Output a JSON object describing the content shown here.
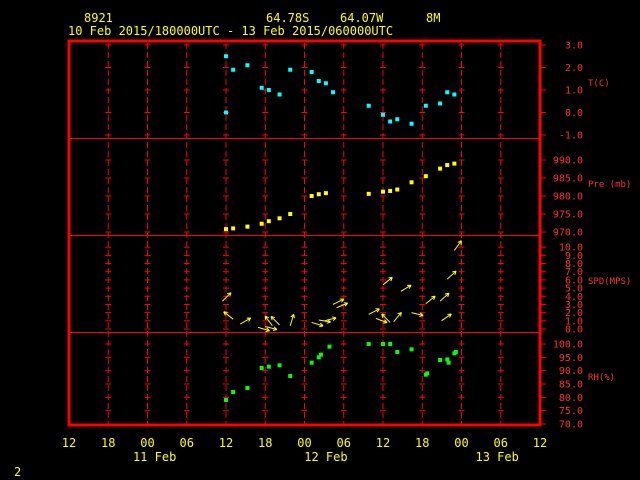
{
  "header": {
    "station": "8921",
    "lat": "64.78S",
    "lon": "64.07W",
    "elev": "8M",
    "period": "10 Feb 2015/180000UTC - 13 Feb 2015/060000UTC"
  },
  "page_number": "2",
  "colors": {
    "frame": "#ff0000",
    "text": "#ffff00",
    "temperature": "#00ffff",
    "pressure": "#ffff00",
    "wind": "#ffff00",
    "humidity": "#00ff00"
  },
  "chart_data": {
    "type": "scatter",
    "x_unit": "hours since 10 Feb 2015 12 UTC",
    "x_range": [
      0,
      66
    ],
    "x_ticks": [
      "12",
      "18",
      "00",
      "06",
      "12",
      "18",
      "00",
      "06",
      "12",
      "18",
      "00",
      "06",
      "12"
    ],
    "day_labels": [
      {
        "label": "11 Feb",
        "at_hour": 12
      },
      {
        "label": "12 Feb",
        "at_hour": 36
      },
      {
        "label": "13 Feb",
        "at_hour": 60
      }
    ],
    "panels": [
      {
        "name": "temperature",
        "label": "T(C)",
        "ylim": [
          -1.0,
          3.0
        ],
        "ticks": [
          "-1.0",
          "0.0",
          "1.0",
          "2.0",
          "3.0"
        ],
        "tick_values": [
          -1,
          0,
          1,
          2,
          3
        ],
        "points": [
          [
            22,
            2.5
          ],
          [
            22,
            0
          ],
          [
            23,
            1.9
          ],
          [
            25,
            2.1
          ],
          [
            27,
            1.1
          ],
          [
            28,
            1.0
          ],
          [
            29.5,
            0.8
          ],
          [
            31,
            1.9
          ],
          [
            34,
            1.8
          ],
          [
            35,
            1.4
          ],
          [
            36,
            1.3
          ],
          [
            37,
            0.9
          ],
          [
            42,
            0.3
          ],
          [
            44,
            -0.1
          ],
          [
            45,
            -0.4
          ],
          [
            46,
            -0.3
          ],
          [
            48,
            -0.5
          ],
          [
            50,
            0.3
          ],
          [
            52,
            0.4
          ],
          [
            53,
            0.9
          ],
          [
            54,
            0.8
          ]
        ]
      },
      {
        "name": "pressure",
        "label": "Pre (mb)",
        "ylim": [
          970.0,
          995.0
        ],
        "ticks": [
          "970.0",
          "975.0",
          "980.0",
          "985.0",
          "990.0"
        ],
        "tick_values": [
          970,
          975,
          980,
          985,
          990
        ],
        "points": [
          [
            22,
            970.8
          ],
          [
            23,
            971.0
          ],
          [
            25,
            971.5
          ],
          [
            27,
            972.3
          ],
          [
            28,
            973.0
          ],
          [
            29.5,
            973.8
          ],
          [
            31,
            975.0
          ],
          [
            34,
            980.0
          ],
          [
            35,
            980.5
          ],
          [
            36,
            980.8
          ],
          [
            42,
            980.6
          ],
          [
            44,
            981.2
          ],
          [
            45,
            981.4
          ],
          [
            46,
            981.8
          ],
          [
            48,
            983.8
          ],
          [
            50,
            985.5
          ],
          [
            52,
            987.6
          ],
          [
            53,
            988.6
          ],
          [
            54,
            989.0
          ]
        ]
      },
      {
        "name": "wind",
        "label": "SPD(MPS)",
        "ylim": [
          0.0,
          11.0
        ],
        "ticks": [
          "0.0",
          "1.0",
          "2.0",
          "3.0",
          "4.0",
          "5.0",
          "6.0",
          "7.0",
          "8.0",
          "9.0",
          "10.0"
        ],
        "tick_values": [
          0,
          1,
          2,
          3,
          4,
          5,
          6,
          7,
          8,
          9,
          10
        ],
        "arrows": [
          [
            21.5,
            3.4,
            1.2,
            1.2
          ],
          [
            23,
            1.2,
            -1.0,
            0.8
          ],
          [
            24,
            0.6,
            1.2,
            0.7
          ],
          [
            26.5,
            0.2,
            1.0,
            -0.3
          ],
          [
            27.5,
            0.3,
            0.8,
            -0.2
          ],
          [
            28.5,
            0.4,
            -0.6,
            0.8
          ],
          [
            29.5,
            0.5,
            -0.8,
            0.8
          ],
          [
            31,
            0.4,
            0.3,
            1.0
          ],
          [
            34,
            0.8,
            1.0,
            -0.3
          ],
          [
            35,
            1.1,
            1.2,
            -0.2
          ],
          [
            35.8,
            1.0,
            0.8,
            0.2
          ],
          [
            37,
            3.0,
            1.2,
            0.6
          ],
          [
            37.5,
            2.6,
            1.2,
            0.5
          ],
          [
            42,
            1.8,
            1.0,
            0.5
          ],
          [
            43,
            1.3,
            0.8,
            -0.3
          ],
          [
            44,
            5.4,
            1.0,
            0.8
          ],
          [
            45,
            0.8,
            -0.6,
            0.6
          ],
          [
            45.5,
            0.9,
            0.5,
            0.6
          ],
          [
            46.5,
            4.6,
            1.0,
            0.6
          ],
          [
            48,
            2.0,
            1.2,
            -0.3
          ],
          [
            50,
            3.1,
            1.0,
            0.8
          ],
          [
            52,
            3.4,
            1.0,
            0.9
          ],
          [
            52.2,
            1.0,
            1.0,
            0.7
          ],
          [
            53,
            6.1,
            1.0,
            0.9
          ],
          [
            54,
            9.6,
            0.8,
            1.1
          ]
        ]
      },
      {
        "name": "humidity",
        "label": "RH(%)",
        "ylim": [
          70.0,
          103.0
        ],
        "ticks": [
          "70.0",
          "75.0",
          "80.0",
          "85.0",
          "90.0",
          "95.0",
          "100.0"
        ],
        "tick_values": [
          70,
          75,
          80,
          85,
          90,
          95,
          100
        ],
        "points": [
          [
            22,
            79
          ],
          [
            23,
            82
          ],
          [
            25,
            83.5
          ],
          [
            27,
            91
          ],
          [
            28,
            91.5
          ],
          [
            29.5,
            92
          ],
          [
            31,
            88
          ],
          [
            34,
            93
          ],
          [
            35,
            95
          ],
          [
            35.3,
            96
          ],
          [
            36.5,
            99
          ],
          [
            42,
            100
          ],
          [
            44,
            100
          ],
          [
            45,
            100
          ],
          [
            46,
            97
          ],
          [
            48,
            98
          ],
          [
            50,
            88.5
          ],
          [
            50.2,
            89
          ],
          [
            52,
            94
          ],
          [
            53,
            94.2
          ],
          [
            53.2,
            93
          ],
          [
            54,
            96.5
          ],
          [
            54.2,
            97
          ]
        ]
      }
    ]
  }
}
